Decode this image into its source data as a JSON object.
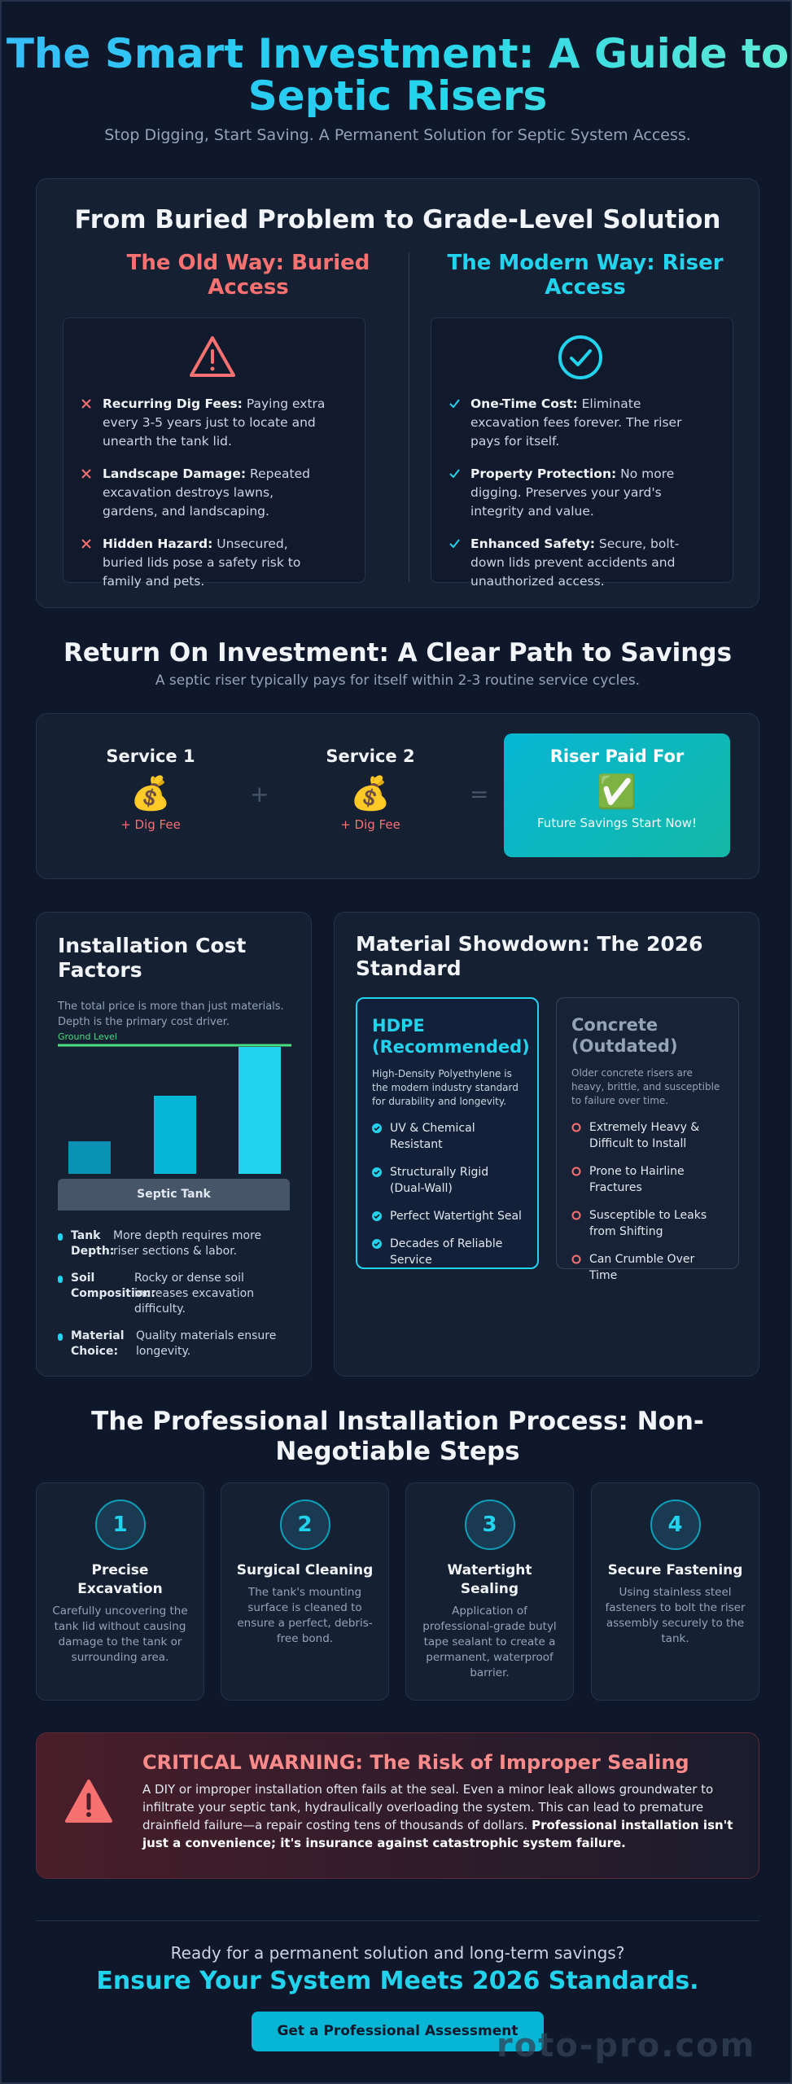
{
  "header": {
    "title": "The Smart Investment: A Guide to Septic Risers",
    "subtitle": "Stop Digging, Start Saving. A Permanent Solution for Septic System Access."
  },
  "comparison": {
    "title": "From Buried Problem to Grade-Level Solution",
    "old": {
      "title": "The Old Way: Buried Access",
      "items": [
        {
          "label": "Recurring Dig Fees:",
          "text": "Paying extra every 3-5 years just to locate and unearth the tank lid."
        },
        {
          "label": "Landscape Damage:",
          "text": "Repeated excavation destroys lawns, gardens, and landscaping."
        },
        {
          "label": "Hidden Hazard:",
          "text": "Unsecured, buried lids pose a safety risk to family and pets."
        }
      ]
    },
    "modern": {
      "title": "The Modern Way: Riser Access",
      "items": [
        {
          "label": "One-Time Cost:",
          "text": "Eliminate excavation fees forever. The riser pays for itself."
        },
        {
          "label": "Property Protection:",
          "text": "No more digging. Preserves your yard's integrity and value."
        },
        {
          "label": "Enhanced Safety:",
          "text": "Secure, bolt-down lids prevent accidents and unauthorized access."
        }
      ]
    }
  },
  "roi": {
    "title": "Return On Investment: A Clear Path to Savings",
    "subtitle": "A septic riser typically pays for itself within 2-3 routine service cycles.",
    "steps": [
      {
        "title": "Service 1",
        "icon": "💰",
        "note": "+ Dig Fee"
      },
      {
        "title": "Service 2",
        "icon": "💰",
        "note": "+ Dig Fee"
      }
    ],
    "operators": [
      "+",
      "="
    ],
    "result": {
      "title": "Riser Paid For",
      "icon": "✅",
      "note": "Future Savings Start Now!"
    }
  },
  "cost": {
    "title": "Installation Cost Factors",
    "description": "The total price is more than just materials. Depth is the primary cost driver.",
    "ground_label": "Ground Level",
    "tank_label": "Septic Tank",
    "factors": [
      {
        "label": "Tank Depth:",
        "text": "More depth requires more riser sections & labor."
      },
      {
        "label": "Soil Composition:",
        "text": "Rocky or dense soil increases excavation difficulty."
      },
      {
        "label": "Material Choice:",
        "text": "Quality materials ensure longevity."
      }
    ]
  },
  "materials": {
    "title": "Material Showdown: The 2026 Standard",
    "hdpe": {
      "title": "HDPE (Recommended)",
      "description": "High-Density Polyethylene is the modern industry standard for durability and longevity.",
      "features": [
        "UV & Chemical Resistant",
        "Structurally Rigid (Dual-Wall)",
        "Perfect Watertight Seal",
        "Decades of Reliable Service"
      ]
    },
    "concrete": {
      "title": "Concrete (Outdated)",
      "description": "Older concrete risers are heavy, brittle, and susceptible to failure over time.",
      "features": [
        "Extremely Heavy & Difficult to Install",
        "Prone to Hairline Fractures",
        "Susceptible to Leaks from Shifting",
        "Can Crumble Over Time"
      ]
    }
  },
  "process": {
    "title": "The Professional Installation Process: Non-Negotiable Steps",
    "steps": [
      {
        "number": "1",
        "title": "Precise Excavation",
        "text": "Carefully uncovering the tank lid without causing damage to the tank or surrounding area."
      },
      {
        "number": "2",
        "title": "Surgical Cleaning",
        "text": "The tank's mounting surface is cleaned to ensure a perfect, debris-free bond."
      },
      {
        "number": "3",
        "title": "Watertight Sealing",
        "text": "Application of professional-grade butyl tape sealant to create a permanent, waterproof barrier."
      },
      {
        "number": "4",
        "title": "Secure Fastening",
        "text": "Using stainless steel fasteners to bolt the riser assembly securely to the tank."
      }
    ]
  },
  "warning": {
    "title": "CRITICAL WARNING: The Risk of Improper Sealing",
    "text": "A DIY or improper installation often fails at the seal. Even a minor leak allows groundwater to infiltrate your septic tank, hydraulically overloading the system. This can lead to premature drainfield failure—a repair costing tens of thousands of dollars.",
    "emphasis": "Professional installation isn't just a convenience; it's insurance against catastrophic system failure."
  },
  "cta": {
    "prompt": "Ready for a permanent solution and long-term savings?",
    "headline": "Ensure Your System Meets 2026 Standards.",
    "button": "Get a Professional Assessment"
  },
  "watermark": "roto-pro.com"
}
